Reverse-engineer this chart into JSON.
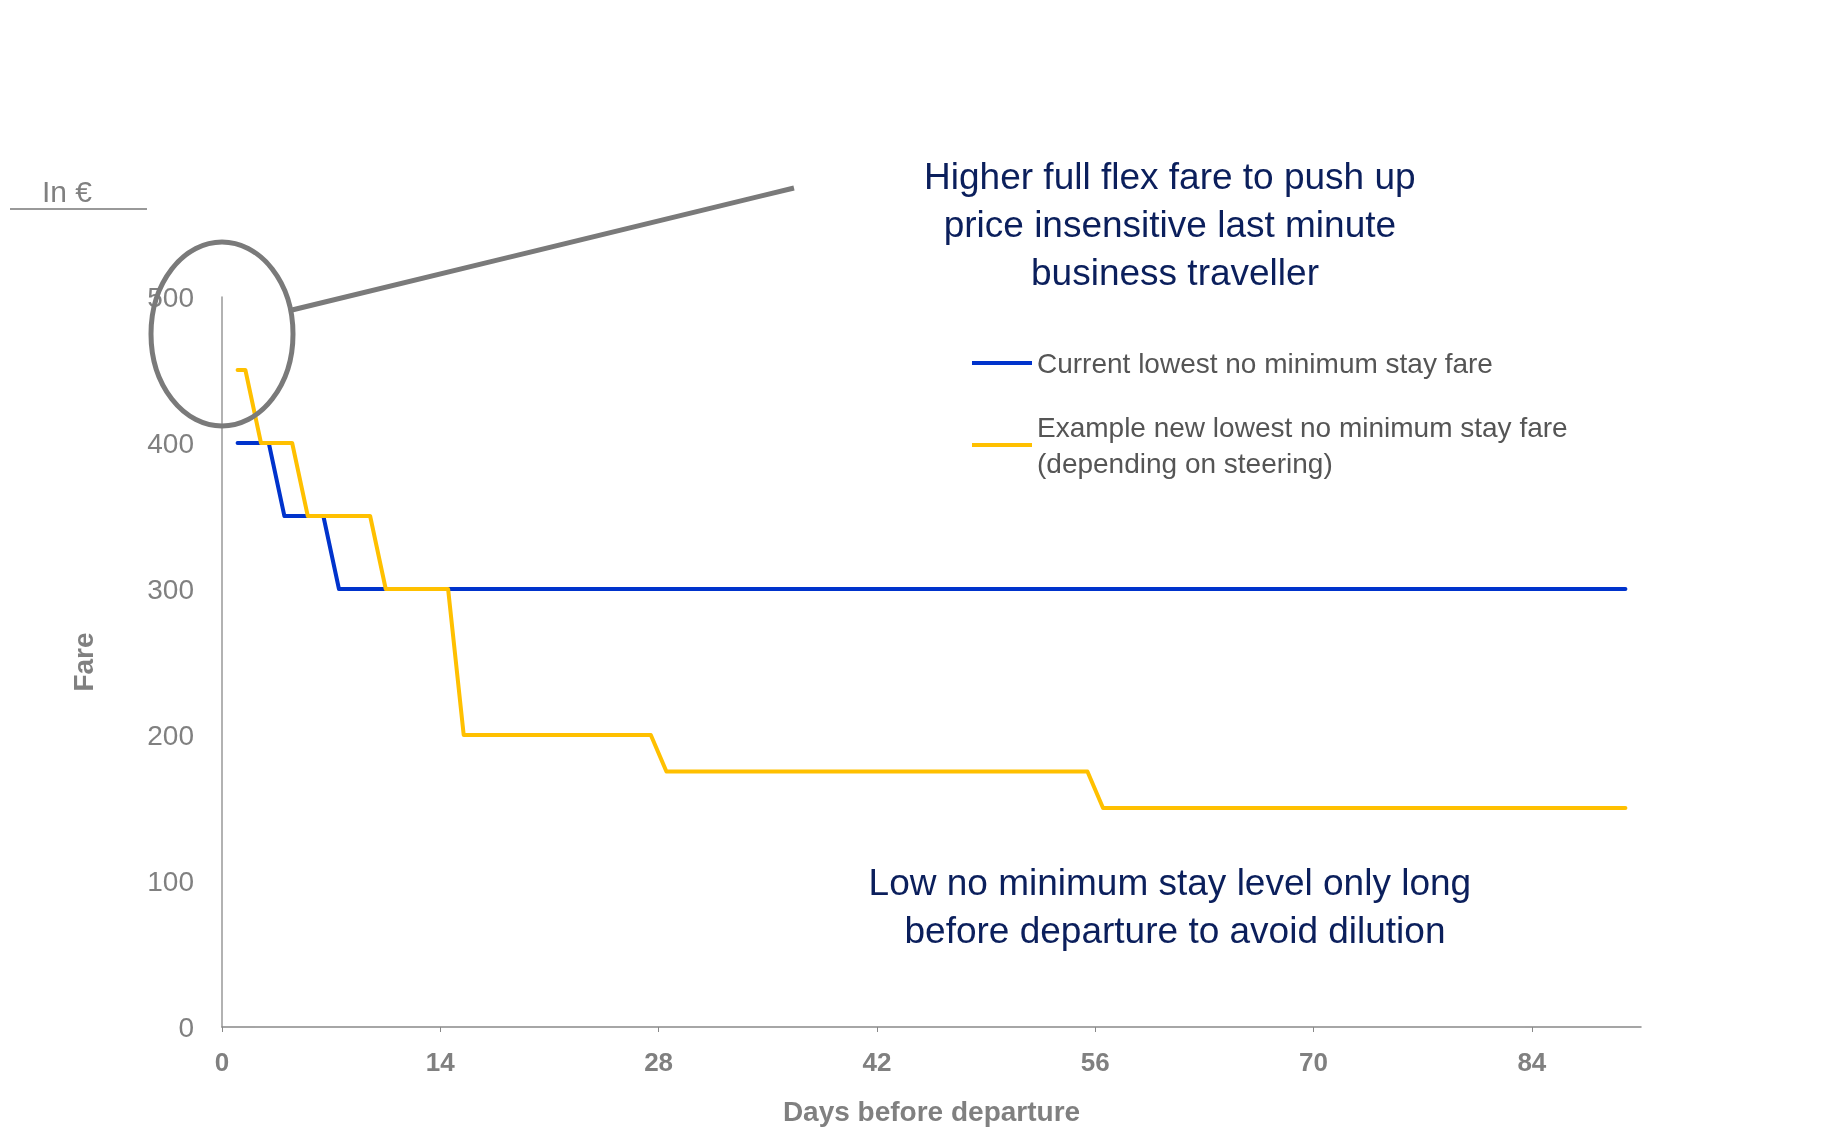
{
  "chart_data": {
    "type": "line",
    "xlabel": "Days before departure",
    "ylabel": "Fare",
    "annotations": [
      "In €",
      "Higher full flex fare to push up price insensitive last minute business traveller",
      "Low no minimum stay level only long before departure to avoid dilution"
    ],
    "series": [
      {
        "name": "Current lowest no minimum stay fare",
        "color": "#0033cc",
        "x": [
          1,
          3,
          4,
          6.5,
          7.5,
          90
        ],
        "values": [
          400,
          400,
          350,
          350,
          300,
          300
        ]
      },
      {
        "name": "Example new lowest no minimum stay fare (depending on steering)",
        "color": "#ffc000",
        "x": [
          1,
          1.5,
          2.5,
          4.5,
          5.5,
          9.5,
          10.5,
          14.5,
          15.5,
          27.5,
          28.5,
          55.5,
          56.5,
          90
        ],
        "values": [
          450,
          450,
          400,
          400,
          350,
          350,
          300,
          300,
          200,
          200,
          175,
          175,
          150,
          150
        ]
      }
    ],
    "xlim": [
      0,
      91
    ],
    "xticks": [
      0,
      14,
      28,
      42,
      56,
      70,
      84
    ],
    "ylim": [
      0,
      500
    ],
    "yticks": [
      0,
      100,
      200,
      300,
      400,
      500
    ],
    "grid": false,
    "legend": "top right",
    "marker": "none",
    "line_style": "solid"
  }
}
